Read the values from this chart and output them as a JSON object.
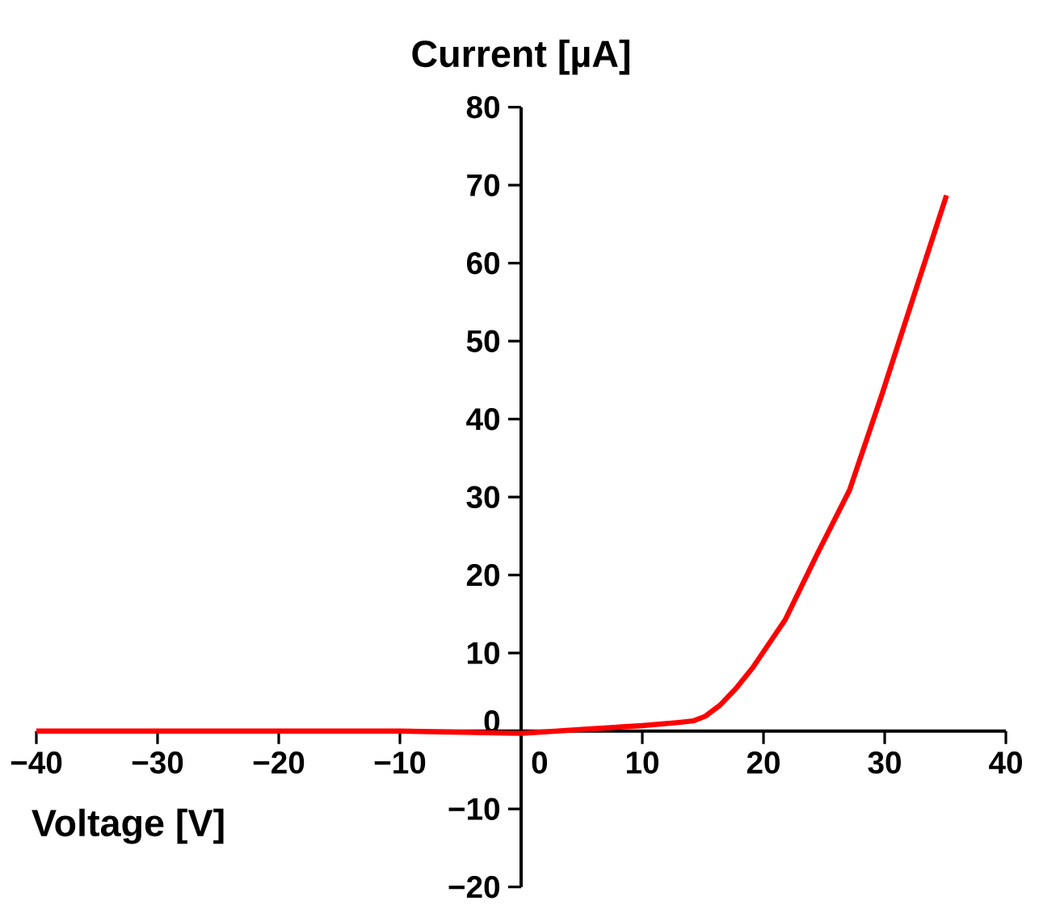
{
  "chart_data": {
    "type": "line",
    "xlabel": "Voltage [V]",
    "ylabel": "Current [µA]",
    "x": [
      -40,
      -30,
      -20,
      -10,
      0,
      5,
      10,
      13,
      14.2,
      15.2,
      16.4,
      17.7,
      19.1,
      21.8,
      24.4,
      27.1,
      29.8,
      32.4,
      35.1
    ],
    "values": [
      0,
      0,
      0,
      0,
      -0.3,
      0.2,
      0.7,
      1.1,
      1.3,
      1.9,
      3.3,
      5.4,
      8.1,
      14.3,
      22.6,
      30.9,
      43.3,
      55.8,
      68.7
    ],
    "color": "#ff0000",
    "xlim": [
      -40,
      40
    ],
    "ylim": [
      -20,
      80
    ],
    "xticks": [
      {
        "value": -40,
        "label": "−40"
      },
      {
        "value": -30,
        "label": "−30"
      },
      {
        "value": -20,
        "label": "−20"
      },
      {
        "value": -10,
        "label": "−10"
      },
      0,
      10,
      20,
      30,
      40
    ],
    "yticks": [
      {
        "value": -20,
        "label": "−20"
      },
      {
        "value": -10,
        "label": "−10"
      },
      0,
      10,
      20,
      30,
      40,
      50,
      60,
      70,
      80
    ]
  }
}
